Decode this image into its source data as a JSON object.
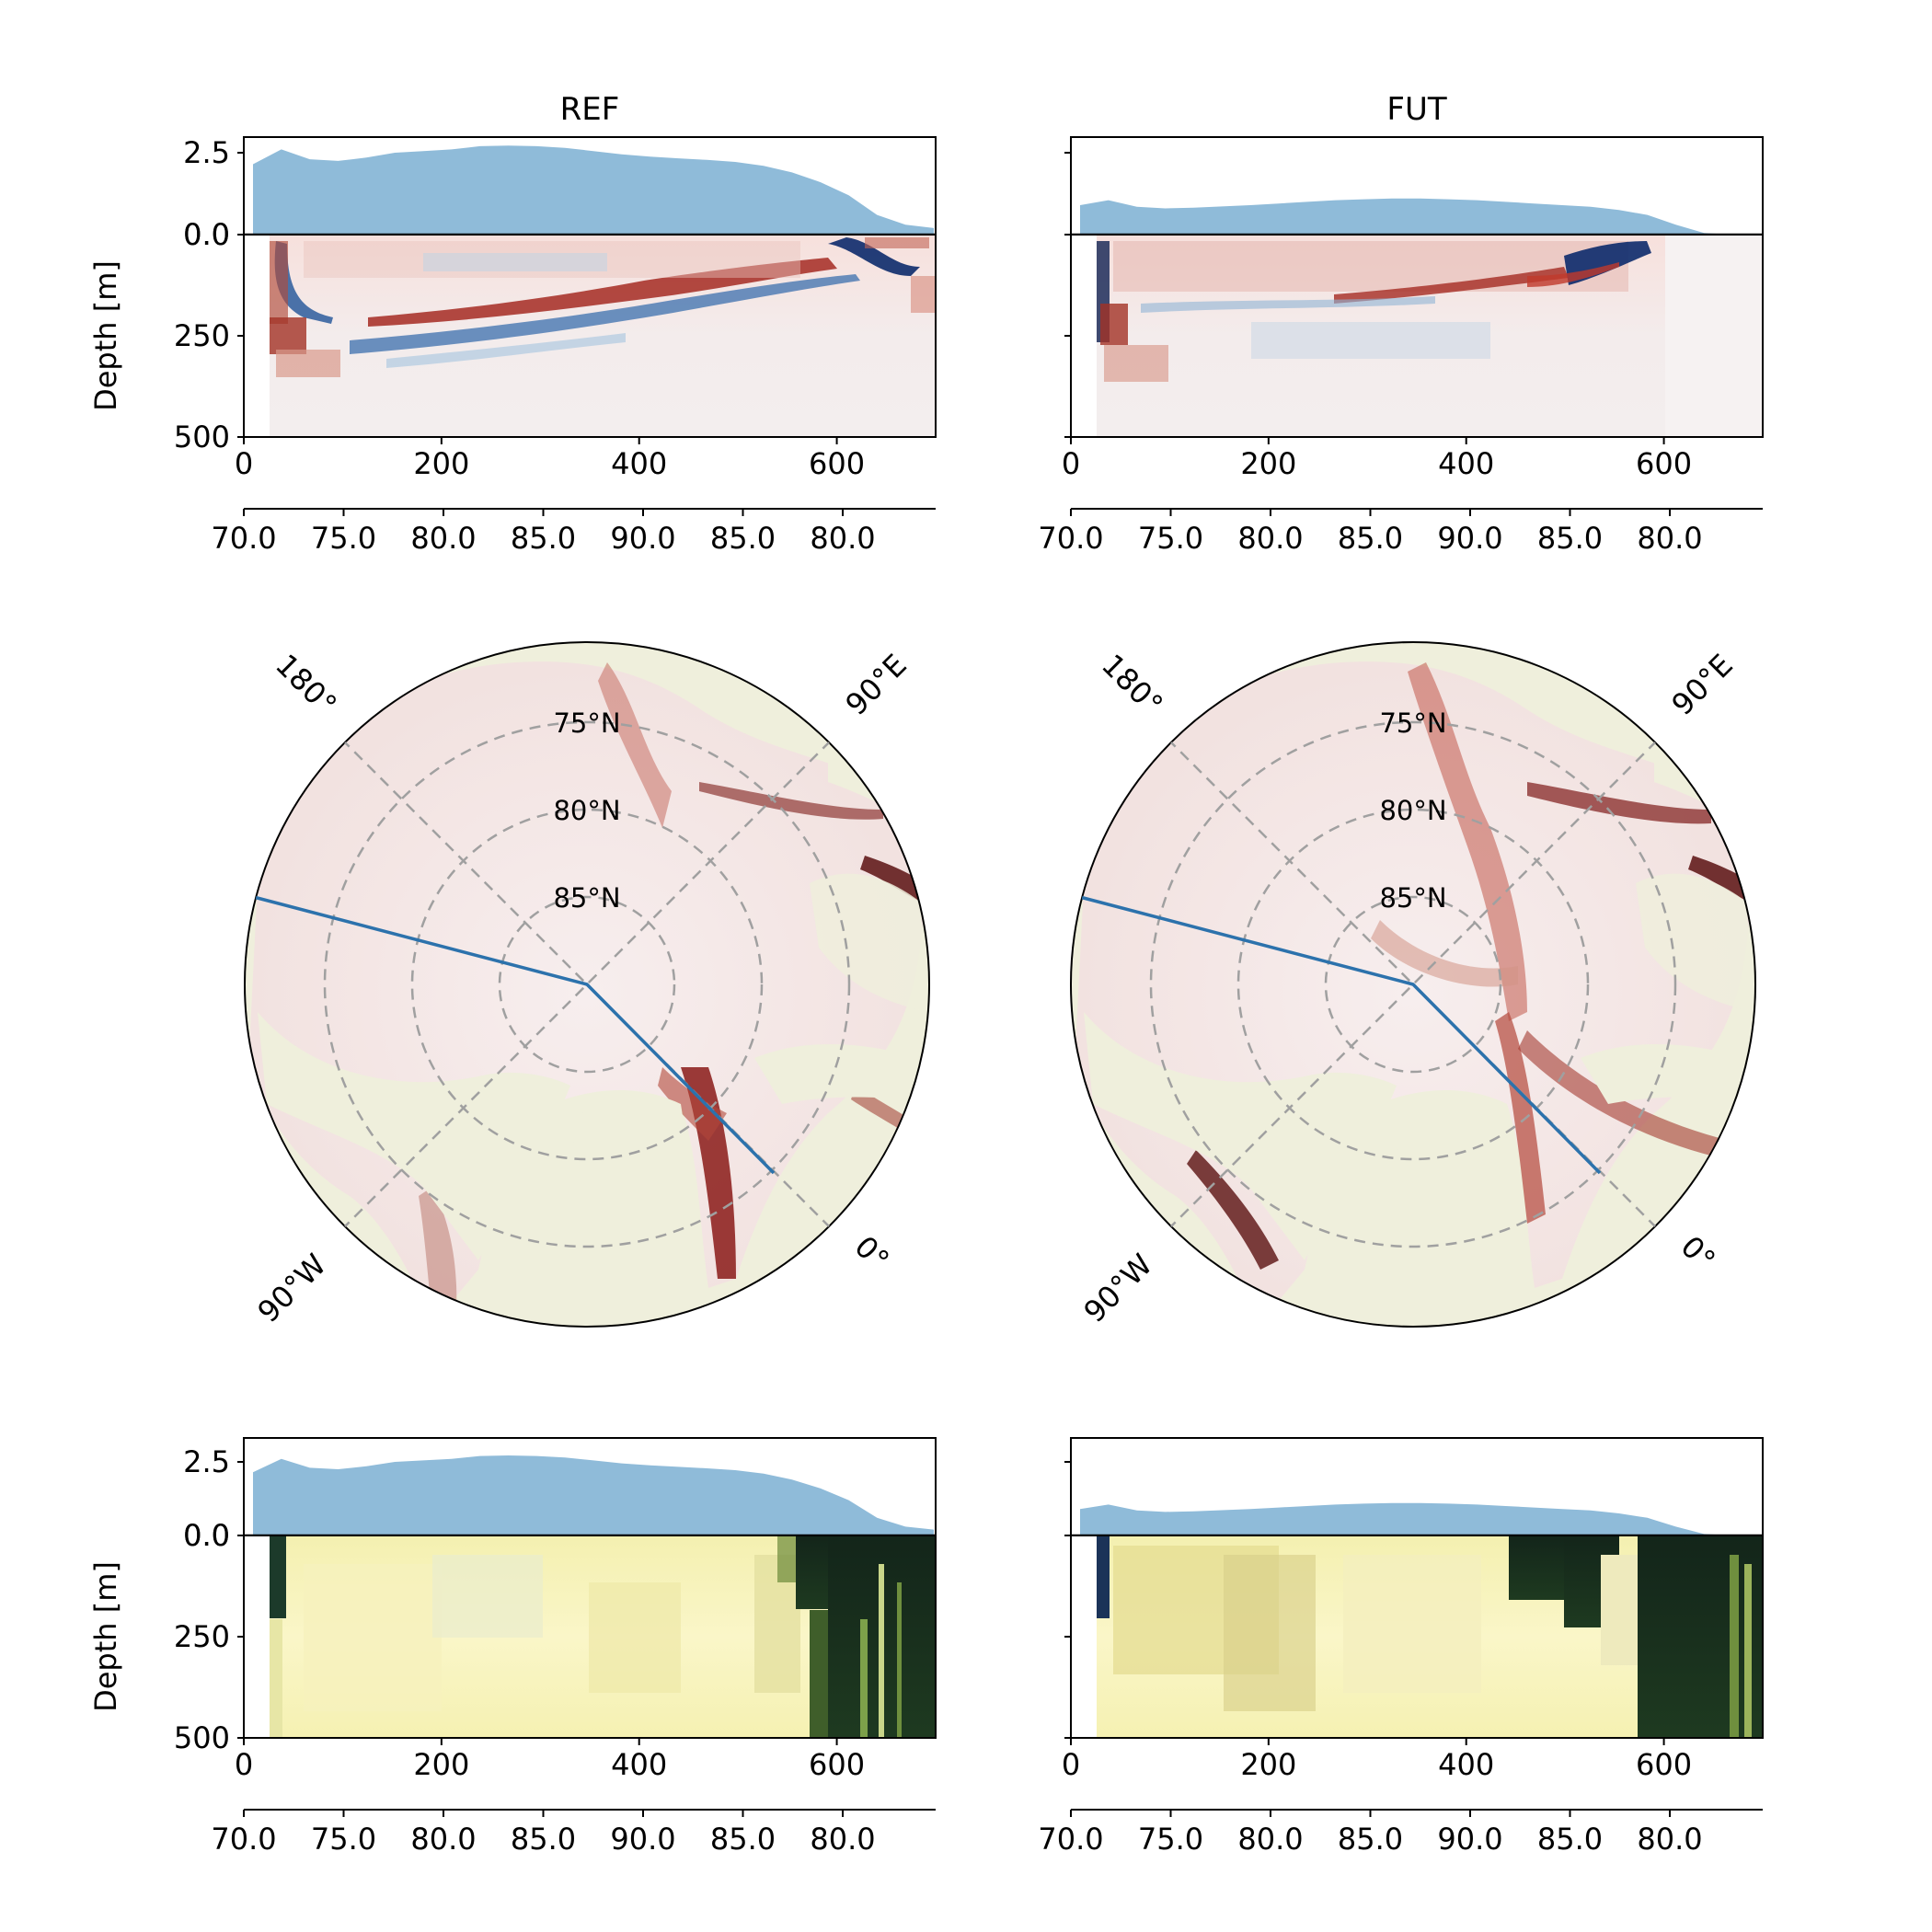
{
  "figure": {
    "columns": [
      {
        "title": "REF",
        "ice_thickness_top": [
          2.15,
          2.6,
          2.3,
          2.25,
          2.35,
          2.5,
          2.55,
          2.6,
          2.7,
          2.72,
          2.7,
          2.65,
          2.55,
          2.45,
          2.38,
          2.33,
          2.28,
          2.22,
          2.1,
          1.9,
          1.6,
          1.2,
          0.6,
          0.3,
          0.2
        ],
        "ice_thickness_bottom": [
          2.15,
          2.6,
          2.3,
          2.25,
          2.35,
          2.5,
          2.55,
          2.6,
          2.7,
          2.72,
          2.7,
          2.65,
          2.55,
          2.45,
          2.38,
          2.33,
          2.28,
          2.22,
          2.1,
          1.9,
          1.6,
          1.2,
          0.6,
          0.3,
          0.2
        ]
      },
      {
        "title": "FUT",
        "ice_thickness_top": [
          0.9,
          1.05,
          0.85,
          0.8,
          0.82,
          0.86,
          0.9,
          0.95,
          1.0,
          1.05,
          1.08,
          1.1,
          1.1,
          1.08,
          1.05,
          1.0,
          0.95,
          0.9,
          0.85,
          0.75,
          0.6,
          0.3,
          0.05,
          0.0,
          0.0
        ],
        "ice_thickness_bottom": [
          0.9,
          1.05,
          0.85,
          0.8,
          0.82,
          0.86,
          0.9,
          0.95,
          1.0,
          1.05,
          1.08,
          1.1,
          1.1,
          1.08,
          1.05,
          1.0,
          0.95,
          0.9,
          0.85,
          0.75,
          0.6,
          0.3,
          0.05,
          0.0,
          0.0
        ]
      }
    ],
    "ylabel": "Depth [m]",
    "ice_yticks": [
      "2.5",
      "0.0"
    ],
    "depth_yticks": [
      "0.0",
      "250",
      "500"
    ],
    "distance_ticks": [
      "0",
      "200",
      "400",
      "600"
    ],
    "latitude_ticks": [
      "70.0",
      "75.0",
      "80.0",
      "85.0",
      "90.0",
      "85.0",
      "80.0"
    ],
    "map_lat_labels": [
      "75°N",
      "80°N",
      "85°N"
    ],
    "map_lon_labels": [
      "180°",
      "90°E",
      "90°W",
      "0°"
    ]
  },
  "chart_data": [
    {
      "type": "area",
      "panel": "REF top ice",
      "x_range": [
        0,
        700
      ],
      "ylim": [
        0,
        3
      ],
      "series": "ice_thickness_top"
    },
    {
      "type": "heatmap",
      "panel": "REF top section",
      "xlim": [
        0,
        700
      ],
      "ylim": [
        500,
        0
      ],
      "colormap": "diverging red-blue"
    },
    {
      "type": "area",
      "panel": "FUT top ice",
      "x_range": [
        0,
        700
      ],
      "ylim": [
        0,
        3
      ]
    },
    {
      "type": "heatmap",
      "panel": "FUT top section",
      "xlim": [
        0,
        700
      ],
      "ylim": [
        500,
        0
      ],
      "colormap": "diverging red-blue"
    },
    {
      "type": "heatmap",
      "panel": "REF map",
      "projection": "north polar stereographic",
      "lat_circles": [
        75,
        80,
        85
      ]
    },
    {
      "type": "heatmap",
      "panel": "FUT map",
      "projection": "north polar stereographic",
      "lat_circles": [
        75,
        80,
        85
      ]
    },
    {
      "type": "area",
      "panel": "REF bottom ice",
      "x_range": [
        0,
        700
      ],
      "ylim": [
        0,
        3
      ]
    },
    {
      "type": "heatmap",
      "panel": "REF bottom section",
      "xlim": [
        0,
        700
      ],
      "ylim": [
        500,
        0
      ],
      "colormap": "yellow-green"
    },
    {
      "type": "area",
      "panel": "FUT bottom ice",
      "x_range": [
        0,
        700
      ],
      "ylim": [
        0,
        3
      ]
    },
    {
      "type": "heatmap",
      "panel": "FUT bottom section",
      "xlim": [
        0,
        700
      ],
      "ylim": [
        500,
        0
      ],
      "colormap": "yellow-green"
    }
  ],
  "colors": {
    "ice": "#8fbbd9",
    "transect": "#2c72ac",
    "land": "#efefdc",
    "grid": "#a0a0a0"
  }
}
